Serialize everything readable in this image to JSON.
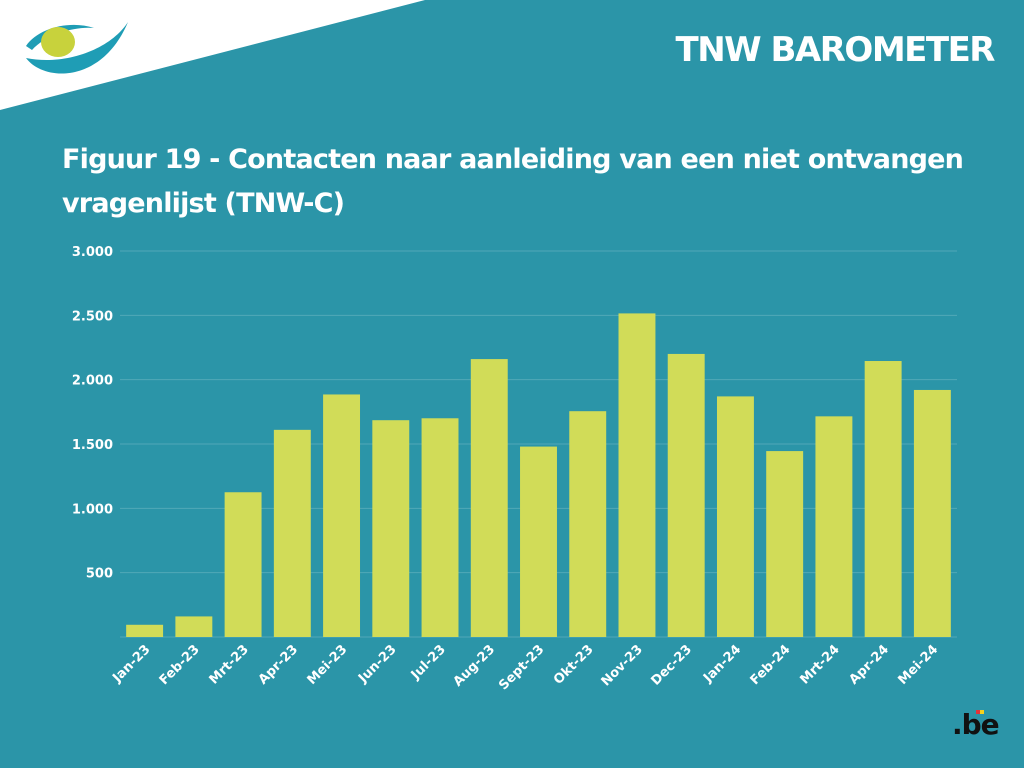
{
  "header": {
    "brand_title": "TNW BAROMETER"
  },
  "figure": {
    "title": "Figuur 19 - Contacten naar aanleiding van een niet ontvangen vragenlijst (TNW-C)"
  },
  "footer": {
    "logo_text": ".be"
  },
  "colors": {
    "background": "#2b95a8",
    "bar": "#d1dc58",
    "text": "#ffffff",
    "logo_yellow": "#c8d23c",
    "logo_blue": "#1f8ca6",
    "be_red": "#e2343b",
    "be_yellow": "#f6d21c"
  },
  "chart_data": {
    "type": "bar",
    "title": "Figuur 19 - Contacten naar aanleiding van een niet ontvangen vragenlijst (TNW-C)",
    "xlabel": "",
    "ylabel": "",
    "ylim": [
      0,
      3000
    ],
    "yticks": [
      0,
      500,
      1000,
      1500,
      2000,
      2500,
      3000
    ],
    "ytick_labels": [
      "",
      "500",
      "1.000",
      "1.500",
      "2.000",
      "2.500",
      "3.000"
    ],
    "grid": true,
    "legend": "none",
    "categories": [
      "Jan-23",
      "Feb-23",
      "Mrt-23",
      "Apr-23",
      "Mei-23",
      "Jun-23",
      "Jul-23",
      "Aug-23",
      "Sept-23",
      "Okt-23",
      "Nov-23",
      "Dec-23",
      "Jan-24",
      "Feb-24",
      "Mrt-24",
      "Apr-24",
      "Mei-24"
    ],
    "values": [
      95,
      160,
      1125,
      1610,
      1885,
      1685,
      1700,
      2160,
      1480,
      1755,
      2515,
      2200,
      1870,
      1445,
      1715,
      2145,
      1920
    ]
  }
}
